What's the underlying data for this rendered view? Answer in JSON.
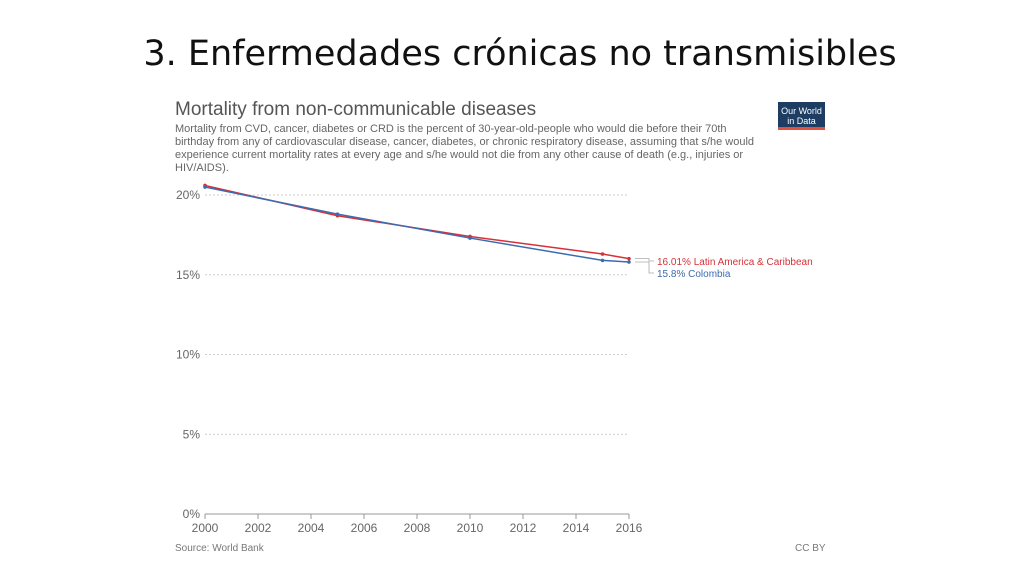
{
  "slide": {
    "title": "3. Enfermedades crónicas no transmisibles"
  },
  "chart": {
    "title": "Mortality from non-communicable diseases",
    "subtitle": "Mortality from CVD, cancer, diabetes or CRD is the percent of 30-year-old-people who would die before their 70th birthday from any of cardiovascular disease, cancer, diabetes, or chronic respiratory disease, assuming that s/he would experience current mortality rates at every age and s/he would not die from any other cause of death (e.g., injuries or HIV/AIDS).",
    "logo_text": "Our World in Data",
    "source": "Source: World Bank",
    "license": "CC BY"
  },
  "chart_data": {
    "type": "line",
    "title": "Mortality from non-communicable diseases",
    "xlabel": "",
    "ylabel": "",
    "xlim": [
      2000,
      2016
    ],
    "ylim": [
      0,
      20
    ],
    "x_ticks": [
      "2000",
      "2002",
      "2004",
      "2006",
      "2008",
      "2010",
      "2012",
      "2014",
      "2016"
    ],
    "y_ticks": [
      "0%",
      "5%",
      "10%",
      "15%",
      "20%"
    ],
    "grid": "horizontal dotted",
    "legend": "right (end labels)",
    "series": [
      {
        "name": "Latin America & Caribbean",
        "label": "16.01% Latin America & Caribbean",
        "color": "#d73038",
        "x": [
          2000,
          2005,
          2010,
          2015,
          2016
        ],
        "values": [
          20.6,
          18.7,
          17.4,
          16.3,
          16.01
        ]
      },
      {
        "name": "Colombia",
        "label": "15.8% Colombia",
        "color": "#3c6bb0",
        "x": [
          2000,
          2005,
          2010,
          2015,
          2016
        ],
        "values": [
          20.5,
          18.8,
          17.3,
          15.9,
          15.8
        ]
      }
    ]
  }
}
